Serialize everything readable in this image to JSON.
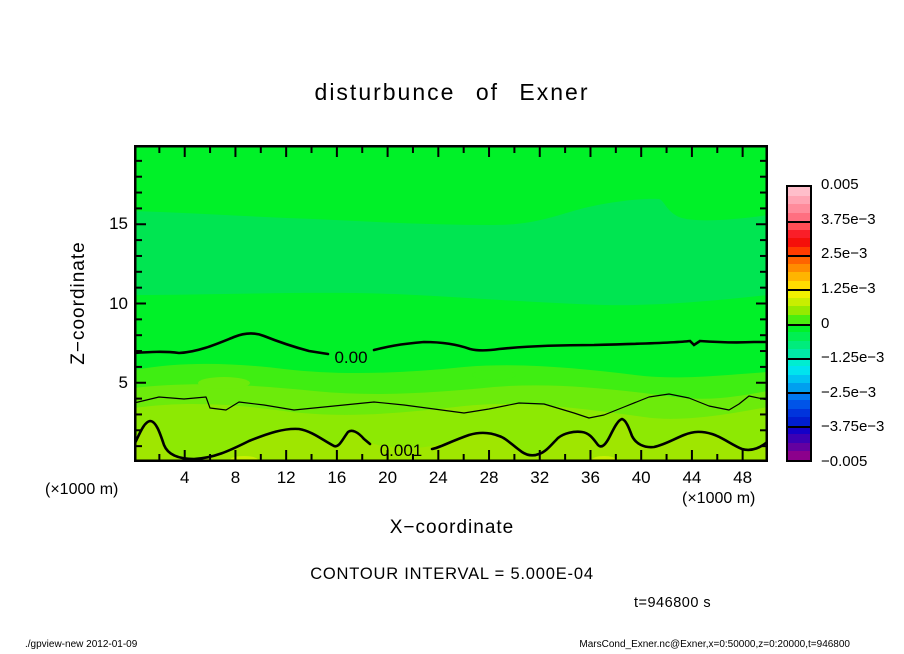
{
  "header": {
    "title": "disturbunce of Exner"
  },
  "chart_data": {
    "type": "heatmap",
    "subtype": "filled-contour-plot",
    "title": "disturbunce of Exner",
    "xlabel": "X-coordinate",
    "ylabel": "Z-coordinate",
    "x_unit": "(×1000 m)",
    "y_unit": "(×1000 m)",
    "xlim": [
      0,
      50
    ],
    "ylim": [
      0,
      20
    ],
    "x_ticks": [
      4,
      8,
      12,
      16,
      20,
      24,
      28,
      32,
      36,
      40,
      44,
      48
    ],
    "x_minor_tick_step": 2,
    "y_ticks": [
      5,
      10,
      15
    ],
    "y_minor_tick_step": 1,
    "grid": "off",
    "legend_position": "colorbar-right",
    "contour_interval_text": "CONTOUR INTERVAL = 5.000E-04",
    "time_text": "t=946800 s",
    "contour_labels": [
      {
        "text": "0.00"
      },
      {
        "text": "0.001"
      }
    ],
    "contour_lines": [
      {
        "level": 0.0,
        "style": "thick",
        "approx_z": 7.0,
        "label": "0.00"
      },
      {
        "level": 0.0005,
        "style": "thin",
        "approx_z": 3.6,
        "label": ""
      },
      {
        "level": 0.001,
        "style": "thick",
        "approx_z": 1.5,
        "label": "0.001"
      }
    ],
    "fill_bands": [
      {
        "color": "#00F128",
        "approx_z_range": [
          15.8,
          20
        ],
        "note": "bright green, top"
      },
      {
        "color": "#00E551",
        "approx_z_range": [
          10.5,
          15.8
        ],
        "note": "lighter emerald band"
      },
      {
        "color": "#00F128",
        "approx_z_range": [
          5.9,
          10.5
        ],
        "note": "bright green around 0.00 contour"
      },
      {
        "color": "#3FEE12",
        "approx_z_range": [
          5.0,
          5.9
        ],
        "note": "yellow-tinged green"
      },
      {
        "color": "#6CEB0B",
        "approx_z_range": [
          3.6,
          5.0
        ],
        "note": "yellow-green"
      },
      {
        "color": "#8DE903",
        "approx_z_range": [
          1.5,
          3.6
        ],
        "note": "stronger yellow-green"
      },
      {
        "color": "#9FE600",
        "approx_z_range": [
          0,
          1.5
        ],
        "note": "yellow-green, bottom"
      }
    ]
  },
  "palette": {
    "green_main": "#00F128",
    "band_mid": "#00E551",
    "g2": "#3FEE12",
    "g3": "#6CEB0B",
    "g4": "#8DE903",
    "g5": "#9FE600",
    "blob_yellow": "#C8F000"
  },
  "colorbar": {
    "labels": [
      "0.005",
      "3.75e−3",
      "2.5e−3",
      "1.25e−3",
      "0",
      "−1.25e−3",
      "−2.5e−3",
      "−3.75e−3",
      "−0.005"
    ],
    "cells": [
      [
        "#FFBECA",
        "#FFA5B4",
        "#FF8B9B",
        "#FF6F80"
      ],
      [
        "#FF4D55",
        "#FA1E28",
        "#F50F0A",
        "#FF3C00"
      ],
      [
        "#FF6400",
        "#FF8C00",
        "#FFB400",
        "#FFDC00"
      ],
      [
        "#F0F000",
        "#C8EE00",
        "#96EA00",
        "#4BEE0F"
      ],
      [
        "#00F228",
        "#00EF52",
        "#00EC7C",
        "#00E9A6"
      ],
      [
        "#00EDD0",
        "#00E4EE",
        "#00C3F2",
        "#009FEF"
      ],
      [
        "#0078F0",
        "#0054E8",
        "#0034DC",
        "#001ED0"
      ],
      [
        "#1400C8",
        "#3C00B4",
        "#6400A0",
        "#8C008C"
      ]
    ]
  },
  "annotations": {
    "contour_interval": "CONTOUR INTERVAL = 5.000E-04",
    "time": "t=946800 s",
    "unit_left": "(×1000 m)",
    "unit_right": "(×1000 m)"
  },
  "axes": {
    "x_label": "X−coordinate",
    "y_label": "Z−coordinate"
  },
  "footer": {
    "left": "./gpview-new  2012-01-09",
    "right": "MarsCond_Exner.nc@Exner,x=0:50000,z=0:20000,t=946800"
  }
}
